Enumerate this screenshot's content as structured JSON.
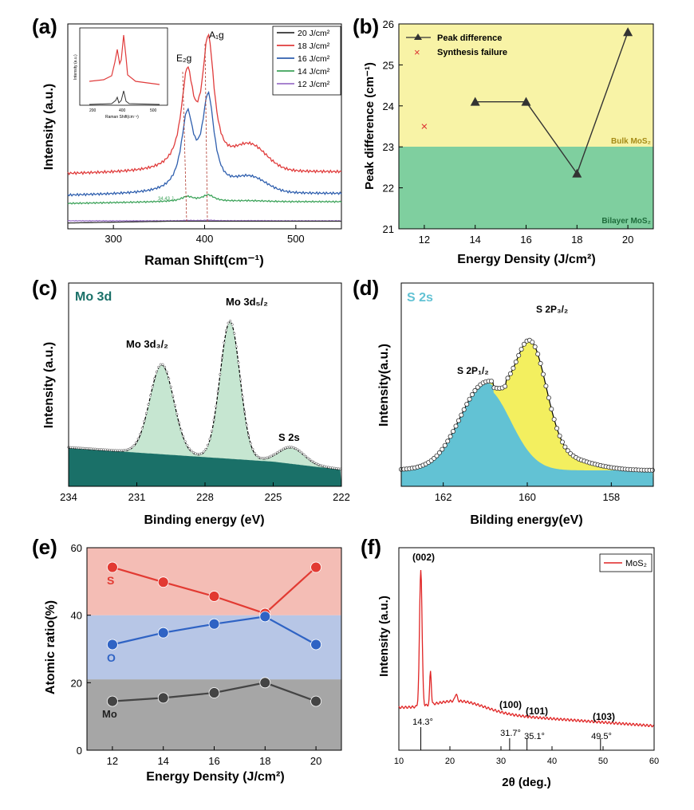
{
  "panel_labels": {
    "a": "(a)",
    "b": "(b)",
    "c": "(c)",
    "d": "(d)",
    "e": "(e)",
    "f": "(f)"
  },
  "chart_data": [
    {
      "id": "a",
      "type": "line",
      "xlabel": "Raman Shift(cm⁻¹)",
      "ylabel": "Intensity (a.u.)",
      "xlim": [
        250,
        550
      ],
      "xticks": [
        300,
        400,
        500
      ],
      "legend_position": "top-right",
      "legend": [
        "20 J/cm²",
        "18 J/cm²",
        "16 J/cm²",
        "14 J/cm²",
        "12 J/cm²"
      ],
      "series_colors": [
        "#333333",
        "#e03c3c",
        "#2f5fae",
        "#3da35a",
        "#9b72c8"
      ],
      "peak_labels": {
        "e2g": "E₂g",
        "a1g": "A₁g"
      },
      "peaks": {
        "e2g": 381,
        "a1g": 404
      },
      "annotation": "34.43 J",
      "inset": {
        "ylabel": "Intensity (a.u.)",
        "xlabel": "Raman Shift(cm⁻¹)",
        "xticks": [
          "200",
          "400",
          "500"
        ]
      }
    },
    {
      "id": "b",
      "type": "line",
      "xlabel": "Energy Density (J/cm²)",
      "ylabel": "Peak difference (cm⁻¹)",
      "xlim": [
        11,
        21
      ],
      "ylim": [
        21,
        26
      ],
      "xticks": [
        12,
        14,
        16,
        18,
        20
      ],
      "yticks": [
        21,
        22,
        23,
        24,
        25,
        26
      ],
      "series": [
        {
          "name": "Peak difference",
          "x": [
            14,
            16,
            18,
            20
          ],
          "y": [
            24.1,
            24.1,
            22.35,
            25.8
          ]
        }
      ],
      "failure": {
        "name": "Synthesis failure",
        "x": 12,
        "y": 23.5
      },
      "regions": [
        {
          "name": "Bulk MoS₂",
          "from": 23,
          "to": 26,
          "color": "#f8f3a6"
        },
        {
          "name": "Bilayer MoS₂",
          "from": 21,
          "to": 23,
          "color": "#7fcf9f"
        }
      ],
      "legend_position": "top-left"
    },
    {
      "id": "c",
      "type": "area",
      "title": "Mo 3d",
      "xlabel": "Binding energy (eV)",
      "ylabel": "Intensity (a.u.)",
      "xlim": [
        234,
        222
      ],
      "xticks": [
        234,
        231,
        228,
        225,
        222
      ],
      "peaks": [
        {
          "label": "Mo 3d₃/₂",
          "x": 229.9
        },
        {
          "label": "Mo 3d₅/₂",
          "x": 226.9
        },
        {
          "label": "S 2s",
          "x": 224.1
        }
      ]
    },
    {
      "id": "d",
      "type": "area",
      "title": "S 2s",
      "xlabel": "Bilding energy(eV)",
      "ylabel": "Intensity(a.u.)",
      "xlim": [
        163,
        157
      ],
      "xticks": [
        162,
        160,
        158
      ],
      "peaks": [
        {
          "label": "S 2P₁/₂",
          "x": 161.0
        },
        {
          "label": "S 2P₃/₂",
          "x": 159.9
        }
      ]
    },
    {
      "id": "e",
      "type": "line",
      "xlabel": "Energy Density (J/cm²)",
      "ylabel": "Atomic ratio(%)",
      "xlim": [
        11,
        21
      ],
      "ylim": [
        0,
        60
      ],
      "xticks": [
        12,
        14,
        16,
        18,
        20
      ],
      "yticks": [
        0,
        20,
        40,
        60
      ],
      "categories": [
        12,
        14,
        16,
        18,
        20
      ],
      "series": [
        {
          "name": "S",
          "values": [
            54.2,
            49.8,
            45.6,
            40.5,
            54.2
          ],
          "color": "#e23a32"
        },
        {
          "name": "O",
          "values": [
            31.3,
            34.8,
            37.4,
            39.6,
            31.3
          ],
          "color": "#2f63c4"
        },
        {
          "name": "Mo",
          "values": [
            14.5,
            15.5,
            17.0,
            20.0,
            14.5
          ],
          "color": "#444444"
        }
      ],
      "bands": [
        {
          "from": 0,
          "to": 21,
          "color": "#a6a6a6"
        },
        {
          "from": 21,
          "to": 40,
          "color": "#b7c6e6"
        },
        {
          "from": 40,
          "to": 60,
          "color": "#f4bdb5"
        }
      ]
    },
    {
      "id": "f",
      "type": "line",
      "xlabel": "2θ (deg.)",
      "ylabel": "Intensity (a.u.)",
      "xlim": [
        10,
        60
      ],
      "xticks": [
        10,
        20,
        30,
        40,
        50,
        60
      ],
      "legend": [
        "MoS₂"
      ],
      "legend_position": "top-right",
      "peaks": [
        {
          "hkl": "(002)",
          "pos_label": "14.3°",
          "x": 14.3
        },
        {
          "hkl": "(100)",
          "pos_label": "31.7°",
          "x": 31.7
        },
        {
          "hkl": "(101)",
          "pos_label": "35.1°",
          "x": 35.1
        },
        {
          "hkl": "(103)",
          "pos_label": "49.5°",
          "x": 49.5
        }
      ]
    }
  ]
}
